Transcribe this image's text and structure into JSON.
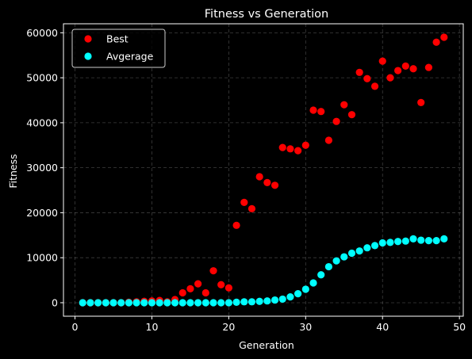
{
  "chart_data": {
    "type": "scatter",
    "title": "Fitness vs Generation",
    "xlabel": "Generation",
    "ylabel": "Fitness",
    "xlim": [
      -1.5,
      50.5
    ],
    "ylim": [
      -3000,
      62000
    ],
    "xticks": [
      0,
      10,
      20,
      30,
      40,
      50
    ],
    "yticks": [
      0,
      10000,
      20000,
      30000,
      40000,
      50000,
      60000
    ],
    "grid": true,
    "legend_position": "top-left",
    "background": "#000000",
    "foreground": "#ffffff",
    "x": [
      1,
      2,
      3,
      4,
      5,
      6,
      7,
      8,
      9,
      10,
      11,
      12,
      13,
      14,
      15,
      16,
      17,
      18,
      19,
      20,
      21,
      22,
      23,
      24,
      25,
      26,
      27,
      28,
      29,
      30,
      31,
      32,
      33,
      34,
      35,
      36,
      37,
      38,
      39,
      40,
      41,
      42,
      43,
      44,
      45,
      46,
      47,
      48
    ],
    "series": [
      {
        "name": "Best",
        "color": "#ff0000",
        "values": [
          0,
          0,
          0,
          0,
          0,
          0,
          100,
          200,
          300,
          400,
          500,
          200,
          700,
          2200,
          3100,
          4200,
          2200,
          7100,
          4000,
          3300,
          17200,
          22300,
          20900,
          28000,
          26700,
          26100,
          34500,
          34200,
          33800,
          35000,
          42800,
          42500,
          36100,
          40300,
          44000,
          41800,
          51200,
          49800,
          48100,
          53700,
          50000,
          51600,
          52600,
          52000,
          44500,
          52300,
          57900,
          59000
        ]
      },
      {
        "name": "Avgerage",
        "color": "#00ffff",
        "values": [
          0,
          0,
          0,
          0,
          0,
          0,
          0,
          0,
          0,
          0,
          0,
          0,
          0,
          0,
          0,
          0,
          0,
          0,
          0,
          0,
          100,
          200,
          200,
          300,
          400,
          600,
          800,
          1300,
          2000,
          3000,
          4400,
          6200,
          8000,
          9300,
          10200,
          11000,
          11500,
          12200,
          12700,
          13300,
          13400,
          13600,
          13700,
          14200,
          13900,
          13800,
          13800,
          14200
        ]
      }
    ]
  }
}
